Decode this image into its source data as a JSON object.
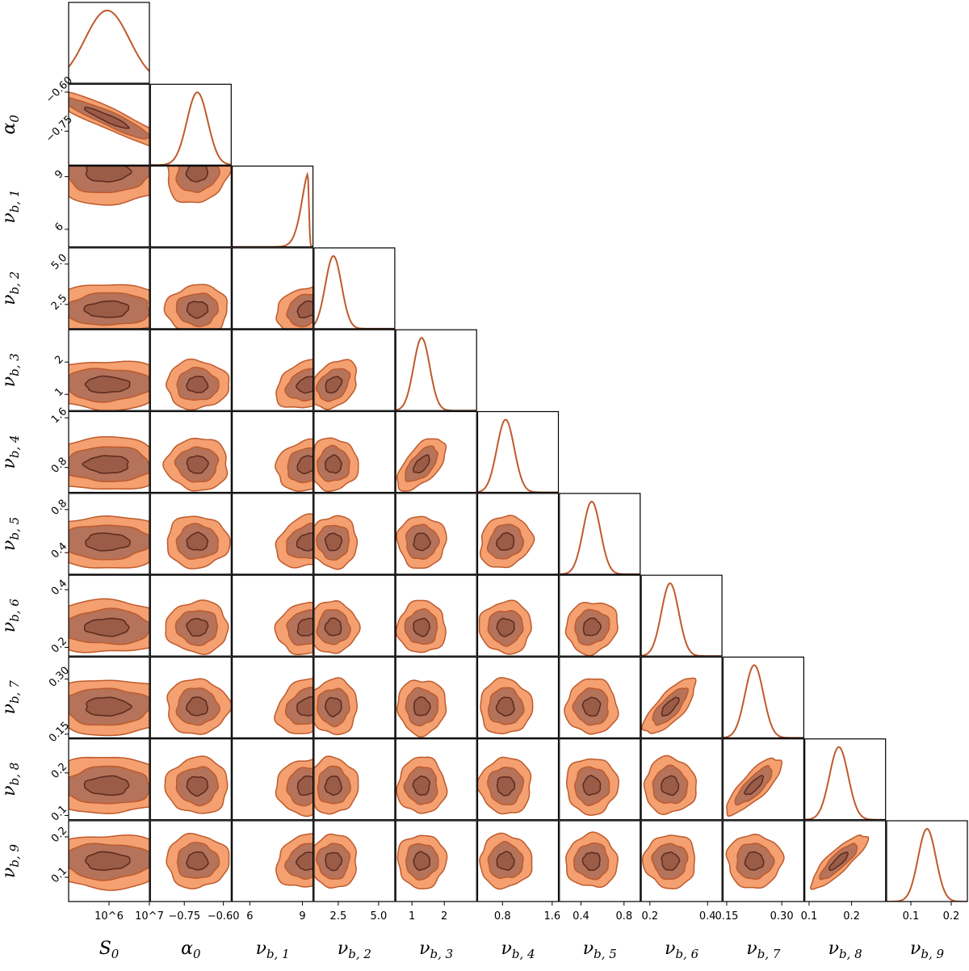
{
  "chart_data": {
    "type": "corner",
    "parameters": [
      {
        "key": "S0",
        "label": "S_0",
        "label_base": "S",
        "label_sub": "0",
        "range": [
          100000.0,
          10000000.0
        ],
        "log": true,
        "ticks": [
          {
            "v": 1000000.0,
            "t": "10^6"
          },
          {
            "v": 10000000.0,
            "t": "10^7"
          }
        ],
        "center": 900000,
        "sd": 0.55
      },
      {
        "key": "alpha0",
        "label": "α_0",
        "label_base": "α",
        "label_sub": "0",
        "range": [
          -0.88,
          -0.57
        ],
        "log": false,
        "ticks": [
          {
            "v": -0.75,
            "t": "−0.75"
          },
          {
            "v": -0.6,
            "t": "−0.60"
          }
        ],
        "center": -0.7,
        "sd": 0.04
      },
      {
        "key": "nub1",
        "label": "ν_b,1",
        "label_base": "ν",
        "label_sub": "b, 1",
        "range": [
          5.0,
          9.6
        ],
        "log": false,
        "ticks": [
          {
            "v": 6,
            "t": "6"
          },
          {
            "v": 9,
            "t": "9"
          }
        ],
        "center": 9.3,
        "sd": 0.6
      },
      {
        "key": "nub2",
        "label": "ν_b,2",
        "label_base": "ν",
        "label_sub": "b, 2",
        "range": [
          1.0,
          6.0
        ],
        "log": false,
        "ticks": [
          {
            "v": 2.5,
            "t": "2.5"
          },
          {
            "v": 5.0,
            "t": "5.0"
          }
        ],
        "center": 2.2,
        "sd": 0.5
      },
      {
        "key": "nub3",
        "label": "ν_b,3",
        "label_base": "ν",
        "label_sub": "b, 3",
        "range": [
          0.5,
          3.0
        ],
        "log": false,
        "ticks": [
          {
            "v": 1,
            "t": "1"
          },
          {
            "v": 2,
            "t": "2"
          }
        ],
        "center": 1.3,
        "sd": 0.25
      },
      {
        "key": "nub4",
        "label": "ν_b,4",
        "label_base": "ν",
        "label_sub": "b, 4",
        "range": [
          0.4,
          1.7
        ],
        "log": false,
        "ticks": [
          {
            "v": 0.8,
            "t": "0.8"
          },
          {
            "v": 1.6,
            "t": "1.6"
          }
        ],
        "center": 0.85,
        "sd": 0.14
      },
      {
        "key": "nub5",
        "label": "ν_b,5",
        "label_base": "ν",
        "label_sub": "b, 5",
        "range": [
          0.2,
          0.95
        ],
        "log": false,
        "ticks": [
          {
            "v": 0.4,
            "t": "0.4"
          },
          {
            "v": 0.8,
            "t": "0.8"
          }
        ],
        "center": 0.5,
        "sd": 0.08
      },
      {
        "key": "nub6",
        "label": "ν_b,6",
        "label_base": "ν",
        "label_sub": "b, 6",
        "range": [
          0.17,
          0.45
        ],
        "log": false,
        "ticks": [
          {
            "v": 0.2,
            "t": "0.2"
          },
          {
            "v": 0.4,
            "t": "0.4"
          }
        ],
        "center": 0.27,
        "sd": 0.03
      },
      {
        "key": "nub7",
        "label": "ν_b,7",
        "label_base": "ν",
        "label_sub": "b, 7",
        "range": [
          0.14,
          0.36
        ],
        "log": false,
        "ticks": [
          {
            "v": 0.15,
            "t": "0.15"
          },
          {
            "v": 0.3,
            "t": "0.30"
          }
        ],
        "center": 0.225,
        "sd": 0.025
      },
      {
        "key": "nub8",
        "label": "ν_b,8",
        "label_base": "ν",
        "label_sub": "b, 8",
        "range": [
          0.09,
          0.28
        ],
        "log": false,
        "ticks": [
          {
            "v": 0.1,
            "t": "0.1"
          },
          {
            "v": 0.2,
            "t": "0.2"
          }
        ],
        "center": 0.17,
        "sd": 0.022
      },
      {
        "key": "nub9",
        "label": "ν_b,9",
        "label_base": "ν",
        "label_sub": "b, 9",
        "range": [
          0.04,
          0.24
        ],
        "log": false,
        "ticks": [
          {
            "v": 0.1,
            "t": "0.1"
          },
          {
            "v": 0.2,
            "t": "0.2"
          }
        ],
        "center": 0.14,
        "sd": 0.022
      }
    ],
    "correlations": {
      "0-1": -0.93,
      "1-2": 0.1,
      "2-3": 0.3,
      "3-4": 0.35,
      "4-5": 0.6,
      "5-6": 0.15,
      "6-7": 0.1,
      "7-8": 0.75,
      "8-9": 0.8,
      "9-10": 0.85,
      "0-3": 0.05,
      "2-4": 0.25,
      "2-5": 0.25,
      "2-6": 0.2,
      "2-7": 0.2,
      "2-8": 0.2,
      "2-9": 0.15,
      "2-10": 0.15
    },
    "contour_levels": [
      "1σ",
      "2σ",
      "3σ"
    ],
    "colors": {
      "outer": "#f4a070",
      "middle": "#b4735a",
      "inner": "#9a5c47",
      "line": "#bf5a2c",
      "inner_line": "#5b2a1e",
      "frame": "#000000"
    }
  }
}
